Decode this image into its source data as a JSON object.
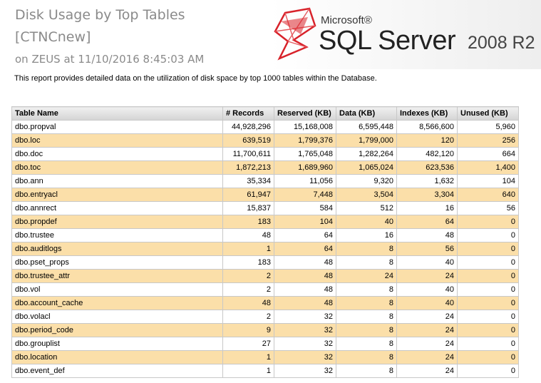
{
  "header": {
    "title": "Disk Usage by Top Tables",
    "database": "[CTNCnew]",
    "subtitle": "on ZEUS at 11/10/2016 8:45:03 AM",
    "logo": {
      "brand": "Microsoft®",
      "product": "SQL Server",
      "version": "2008 R2"
    }
  },
  "description": "This report provides detailed data on the utilization of disk space by top 1000 tables within the Database.",
  "colors": {
    "row_highlight": "#fbdfa9",
    "logo_red": "#d8222a",
    "title_gray": "#8a8a8a"
  },
  "table": {
    "columns": [
      "Table Name",
      "# Records",
      "Reserved (KB)",
      "Data (KB)",
      "Indexes (KB)",
      "Unused (KB)"
    ],
    "rows": [
      [
        "dbo.propval",
        "44,928,296",
        "15,168,008",
        "6,595,448",
        "8,566,600",
        "5,960"
      ],
      [
        "dbo.loc",
        "639,519",
        "1,799,376",
        "1,799,000",
        "120",
        "256"
      ],
      [
        "dbo.doc",
        "11,700,611",
        "1,765,048",
        "1,282,264",
        "482,120",
        "664"
      ],
      [
        "dbo.toc",
        "1,872,213",
        "1,689,960",
        "1,065,024",
        "623,536",
        "1,400"
      ],
      [
        "dbo.ann",
        "35,334",
        "11,056",
        "9,320",
        "1,632",
        "104"
      ],
      [
        "dbo.entryacl",
        "61,947",
        "7,448",
        "3,504",
        "3,304",
        "640"
      ],
      [
        "dbo.annrect",
        "15,837",
        "584",
        "512",
        "16",
        "56"
      ],
      [
        "dbo.propdef",
        "183",
        "104",
        "40",
        "64",
        "0"
      ],
      [
        "dbo.trustee",
        "48",
        "64",
        "16",
        "48",
        "0"
      ],
      [
        "dbo.auditlogs",
        "1",
        "64",
        "8",
        "56",
        "0"
      ],
      [
        "dbo.pset_props",
        "183",
        "48",
        "8",
        "40",
        "0"
      ],
      [
        "dbo.trustee_attr",
        "2",
        "48",
        "24",
        "24",
        "0"
      ],
      [
        "dbo.vol",
        "2",
        "48",
        "8",
        "40",
        "0"
      ],
      [
        "dbo.account_cache",
        "48",
        "48",
        "8",
        "40",
        "0"
      ],
      [
        "dbo.volacl",
        "2",
        "32",
        "8",
        "24",
        "0"
      ],
      [
        "dbo.period_code",
        "9",
        "32",
        "8",
        "24",
        "0"
      ],
      [
        "dbo.grouplist",
        "27",
        "32",
        "8",
        "24",
        "0"
      ],
      [
        "dbo.location",
        "1",
        "32",
        "8",
        "24",
        "0"
      ],
      [
        "dbo.event_def",
        "1",
        "32",
        "8",
        "24",
        "0"
      ]
    ]
  }
}
